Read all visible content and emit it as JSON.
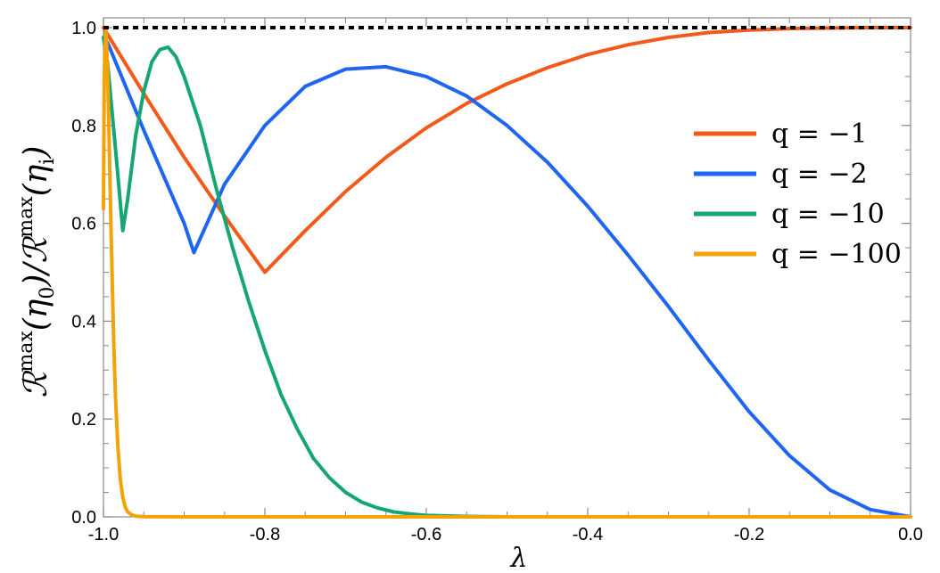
{
  "chart_data": {
    "type": "line",
    "xlabel": "λ",
    "ylabel": "𝒭max(η0)/𝒭max(ηi)",
    "ylabel_parts": [
      "ℛ",
      "max",
      "(η",
      "0",
      ")/ℛ",
      "max",
      "(η",
      "i",
      ")"
    ],
    "xlim": [
      -1.0,
      0.0
    ],
    "ylim": [
      0.0,
      1.02
    ],
    "xticks": [
      -1.0,
      -0.8,
      -0.6,
      -0.4,
      -0.2,
      0.0
    ],
    "xtick_labels": [
      "-1.0",
      "-0.8",
      "-0.6",
      "-0.4",
      "-0.2",
      "0.0"
    ],
    "yticks": [
      0.0,
      0.2,
      0.4,
      0.6,
      0.8,
      1.0
    ],
    "ytick_labels": [
      "0.0",
      "0.2",
      "0.4",
      "0.6",
      "0.8",
      "1.0"
    ],
    "grid": false,
    "legend_position": "right",
    "reference_line": {
      "y": 1.0,
      "style": "dotted",
      "color": "#000000"
    },
    "series": [
      {
        "name": "q = −1",
        "color": "#F25A1C",
        "x": [
          -1.0,
          -0.95,
          -0.9,
          -0.85,
          -0.8,
          -0.8,
          -0.75,
          -0.7,
          -0.65,
          -0.6,
          -0.55,
          -0.5,
          -0.45,
          -0.4,
          -0.35,
          -0.3,
          -0.25,
          -0.2,
          -0.15,
          -0.1,
          -0.05,
          0.0
        ],
        "y": [
          1.0,
          0.865,
          0.735,
          0.615,
          0.5,
          0.5,
          0.585,
          0.665,
          0.735,
          0.795,
          0.845,
          0.885,
          0.918,
          0.945,
          0.965,
          0.98,
          0.99,
          0.995,
          0.998,
          0.999,
          1.0,
          1.0
        ]
      },
      {
        "name": "q = −2",
        "color": "#1F65F0",
        "x": [
          -1.0,
          -0.995,
          -0.95,
          -0.9,
          -0.888,
          -0.85,
          -0.8,
          -0.75,
          -0.7,
          -0.65,
          -0.6,
          -0.55,
          -0.5,
          -0.45,
          -0.4,
          -0.35,
          -0.3,
          -0.25,
          -0.2,
          -0.15,
          -0.1,
          -0.05,
          0.0
        ],
        "y": [
          0.98,
          0.97,
          0.79,
          0.6,
          0.54,
          0.68,
          0.8,
          0.88,
          0.915,
          0.92,
          0.9,
          0.86,
          0.8,
          0.725,
          0.635,
          0.535,
          0.43,
          0.32,
          0.215,
          0.125,
          0.055,
          0.015,
          0.0
        ]
      },
      {
        "name": "q = −10",
        "color": "#16A672",
        "x": [
          -1.0,
          -0.995,
          -0.985,
          -0.976,
          -0.97,
          -0.96,
          -0.95,
          -0.94,
          -0.93,
          -0.92,
          -0.91,
          -0.9,
          -0.88,
          -0.86,
          -0.84,
          -0.82,
          -0.8,
          -0.78,
          -0.76,
          -0.74,
          -0.72,
          -0.7,
          -0.68,
          -0.66,
          -0.64,
          -0.62,
          -0.6,
          -0.55,
          -0.5,
          -0.4,
          0.0
        ],
        "y": [
          0.98,
          0.93,
          0.75,
          0.585,
          0.65,
          0.78,
          0.87,
          0.93,
          0.955,
          0.96,
          0.94,
          0.9,
          0.8,
          0.67,
          0.55,
          0.44,
          0.34,
          0.25,
          0.18,
          0.12,
          0.08,
          0.05,
          0.03,
          0.018,
          0.01,
          0.006,
          0.003,
          0.001,
          0.0,
          0.0,
          0.0
        ]
      },
      {
        "name": "q = −100",
        "color": "#F4A20A",
        "x": [
          -1.0,
          -0.999,
          -0.997,
          -0.995,
          -0.993,
          -0.991,
          -0.989,
          -0.987,
          -0.985,
          -0.982,
          -0.979,
          -0.976,
          -0.973,
          -0.97,
          -0.965,
          -0.96,
          -0.95,
          -0.9,
          0.0
        ],
        "y": [
          0.63,
          0.9,
          1.0,
          0.92,
          0.78,
          0.62,
          0.47,
          0.34,
          0.24,
          0.14,
          0.075,
          0.04,
          0.02,
          0.01,
          0.004,
          0.0015,
          0.0003,
          0.0,
          0.0
        ]
      }
    ]
  }
}
